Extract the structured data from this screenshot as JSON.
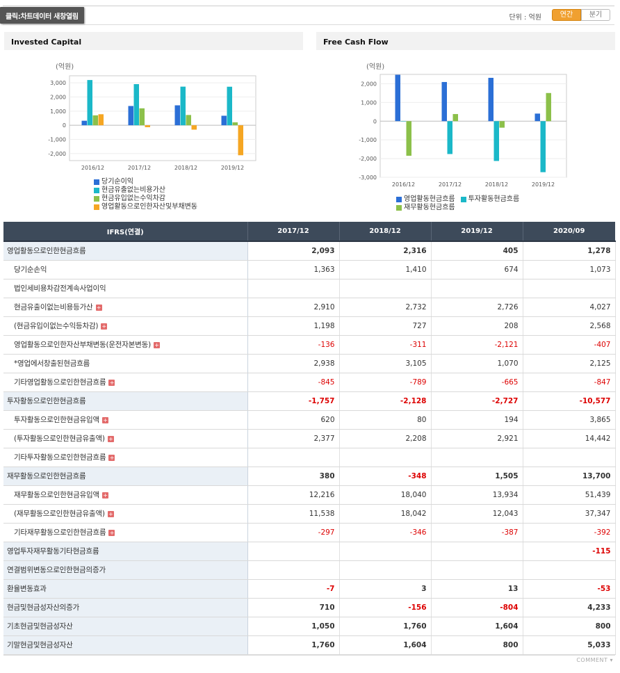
{
  "topbar": {
    "banner": "클릭:차트데이터 새창열림",
    "unit": "단위 : 억원",
    "yearly_label": "연간",
    "quarter_label": "분기"
  },
  "colors": {
    "blue": "#2b6fd6",
    "teal": "#1bb8c8",
    "green": "#8cc04a",
    "orange": "#f5a623",
    "negative": "#dd0000",
    "header": "#3d4a5a"
  },
  "charts": {
    "left_title": "Invested Capital",
    "right_title": "Free Cash Flow",
    "unit_label": "(억원)"
  },
  "chart_data": [
    {
      "type": "bar",
      "title": "Invested Capital",
      "ylabel": "(억원)",
      "ylim": [
        -2500,
        3500
      ],
      "yticks": [
        3000,
        2000,
        1000,
        0,
        -1000,
        -2000
      ],
      "ytick_labels": [
        "3,000",
        "2,000",
        "1,000",
        "0",
        "-1,000",
        "-2,000"
      ],
      "categories": [
        "2016/12",
        "2017/12",
        "2018/12",
        "2019/12"
      ],
      "series": [
        {
          "name": "당기순이익",
          "color": "#2b6fd6",
          "values": [
            320,
            1363,
            1410,
            674
          ]
        },
        {
          "name": "현금유출없는비용가산",
          "color": "#1bb8c8",
          "values": [
            3200,
            2910,
            2732,
            2726
          ]
        },
        {
          "name": "현금유입없는수익차감",
          "color": "#8cc04a",
          "values": [
            700,
            1198,
            727,
            208
          ]
        },
        {
          "name": "영업활동으로인한자산및부채변동",
          "color": "#f5a623",
          "values": [
            780,
            -136,
            -311,
            -2121
          ]
        }
      ],
      "grid": true,
      "legend": "bottom"
    },
    {
      "type": "bar",
      "title": "Free Cash Flow",
      "ylabel": "(억원)",
      "ylim": [
        -3000,
        2500
      ],
      "yticks": [
        2000,
        1000,
        0,
        -1000,
        -2000,
        -3000
      ],
      "ytick_labels": [
        "2,000",
        "1,000",
        "0",
        "-1,000",
        "-2,000",
        "-3,000"
      ],
      "categories": [
        "2016/12",
        "2017/12",
        "2018/12",
        "2019/12"
      ],
      "series": [
        {
          "name": "영업활동현금흐름",
          "color": "#2b6fd6",
          "values": [
            2480,
            2093,
            2316,
            405
          ]
        },
        {
          "name": "투자활동현금흐름",
          "color": "#1bb8c8",
          "values": [
            0,
            -1757,
            -2128,
            -2727
          ]
        },
        {
          "name": "재무활동현금흐름",
          "color": "#8cc04a",
          "values": [
            -1850,
            380,
            -348,
            1505
          ]
        }
      ],
      "grid": true,
      "legend": "bottom"
    }
  ],
  "table": {
    "header": [
      "IFRS(연결)",
      "2017/12",
      "2018/12",
      "2019/12",
      "2020/09"
    ],
    "rows": [
      {
        "label": "영업활동으로인한현금흐름",
        "main": true,
        "plus": false,
        "values": [
          "2,093",
          "2,316",
          "405",
          "1,278"
        ]
      },
      {
        "label": "당기순손익",
        "main": false,
        "plus": false,
        "values": [
          "1,363",
          "1,410",
          "674",
          "1,073"
        ]
      },
      {
        "label": "법인세비용차감전계속사업이익",
        "main": false,
        "plus": false,
        "values": [
          "",
          "",
          "",
          ""
        ]
      },
      {
        "label": "현금유출이없는비용등가산",
        "main": false,
        "plus": true,
        "values": [
          "2,910",
          "2,732",
          "2,726",
          "4,027"
        ]
      },
      {
        "label": "(현금유입이없는수익등차감)",
        "main": false,
        "plus": true,
        "values": [
          "1,198",
          "727",
          "208",
          "2,568"
        ]
      },
      {
        "label": "영업활동으로인한자산부채변동(운전자본변동)",
        "main": false,
        "plus": true,
        "values": [
          "-136",
          "-311",
          "-2,121",
          "-407"
        ]
      },
      {
        "label": "*영업에서창출된현금흐름",
        "main": false,
        "plus": false,
        "values": [
          "2,938",
          "3,105",
          "1,070",
          "2,125"
        ]
      },
      {
        "label": "기타영업활동으로인한현금흐름",
        "main": false,
        "plus": true,
        "values": [
          "-845",
          "-789",
          "-665",
          "-847"
        ]
      },
      {
        "label": "투자활동으로인한현금흐름",
        "main": true,
        "plus": false,
        "values": [
          "-1,757",
          "-2,128",
          "-2,727",
          "-10,577"
        ]
      },
      {
        "label": "투자활동으로인한현금유입액",
        "main": false,
        "plus": true,
        "values": [
          "620",
          "80",
          "194",
          "3,865"
        ]
      },
      {
        "label": "(투자활동으로인한현금유출액)",
        "main": false,
        "plus": true,
        "values": [
          "2,377",
          "2,208",
          "2,921",
          "14,442"
        ]
      },
      {
        "label": "기타투자활동으로인한현금흐름",
        "main": false,
        "plus": true,
        "values": [
          "",
          "",
          "",
          ""
        ]
      },
      {
        "label": "재무활동으로인한현금흐름",
        "main": true,
        "plus": false,
        "values": [
          "380",
          "-348",
          "1,505",
          "13,700"
        ]
      },
      {
        "label": "재무활동으로인한현금유입액",
        "main": false,
        "plus": true,
        "values": [
          "12,216",
          "18,040",
          "13,934",
          "51,439"
        ]
      },
      {
        "label": "(재무활동으로인한현금유출액)",
        "main": false,
        "plus": true,
        "values": [
          "11,538",
          "18,042",
          "12,043",
          "37,347"
        ]
      },
      {
        "label": "기타재무활동으로인한현금흐름",
        "main": false,
        "plus": true,
        "values": [
          "-297",
          "-346",
          "-387",
          "-392"
        ]
      },
      {
        "label": "영업투자재무활동기타현금흐름",
        "main": true,
        "plus": false,
        "values": [
          "",
          "",
          "",
          "-115"
        ]
      },
      {
        "label": "연결범위변동으로인한현금의증가",
        "main": true,
        "plus": false,
        "values": [
          "",
          "",
          "",
          ""
        ]
      },
      {
        "label": "환율변동효과",
        "main": true,
        "plus": false,
        "values": [
          "-7",
          "3",
          "13",
          "-53"
        ]
      },
      {
        "label": "현금및현금성자산의증가",
        "main": true,
        "plus": false,
        "values": [
          "710",
          "-156",
          "-804",
          "4,233"
        ]
      },
      {
        "label": "기초현금및현금성자산",
        "main": true,
        "plus": false,
        "values": [
          "1,050",
          "1,760",
          "1,604",
          "800"
        ]
      },
      {
        "label": "기말현금및현금성자산",
        "main": true,
        "plus": false,
        "values": [
          "1,760",
          "1,604",
          "800",
          "5,033"
        ]
      }
    ]
  },
  "footer": {
    "comment": "COMMENT"
  }
}
